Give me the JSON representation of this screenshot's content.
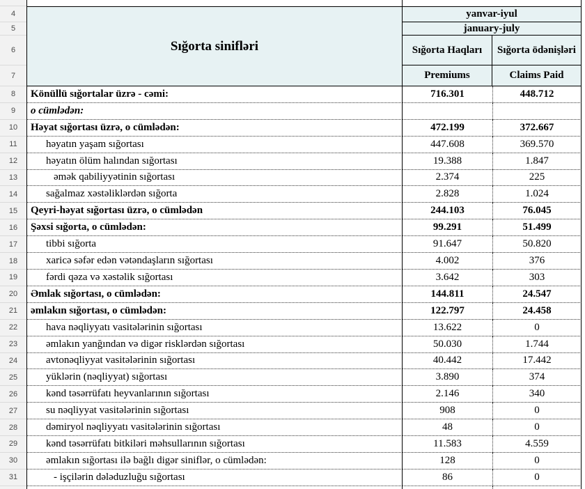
{
  "header": {
    "classes": "Sığorta sinifləri",
    "period_az": "yanvar-iyul",
    "period_en": "january-july",
    "premiums_az": "Sığorta Haqları",
    "claims_az": "Sığorta ödənişləri",
    "premiums_en": "Premiums",
    "claims_en": "Claims Paid"
  },
  "gutter": {
    "header_row_numbers": [
      "4",
      "5",
      "6",
      "7"
    ]
  },
  "rows": [
    {
      "num": "8",
      "label": "Könüllü sığortalar üzrə - cəmi:",
      "premiums": "716.301",
      "claims": "448.712",
      "style": "bold",
      "indent": 0
    },
    {
      "num": "9",
      "label": "o cümlədən:",
      "premiums": "",
      "claims": "",
      "style": "italic",
      "indent": 0
    },
    {
      "num": "10",
      "label": "Həyat sığortası üzrə, o cümlədən:",
      "premiums": "472.199",
      "claims": "372.667",
      "style": "bold",
      "indent": 0
    },
    {
      "num": "11",
      "label": "həyatın yaşam sığortası",
      "premiums": "447.608",
      "claims": "369.570",
      "style": "normal",
      "indent": 1
    },
    {
      "num": "12",
      "label": "həyatın ölüm halından sığortası",
      "premiums": "19.388",
      "claims": "1.847",
      "style": "normal",
      "indent": 1
    },
    {
      "num": "13",
      "label": "əmək qabiliyyətinin sığortası",
      "premiums": "2.374",
      "claims": "225",
      "style": "normal",
      "indent": 2
    },
    {
      "num": "14",
      "label": "sağalmaz xəstəliklərdən sığorta",
      "premiums": "2.828",
      "claims": "1.024",
      "style": "normal",
      "indent": 1
    },
    {
      "num": "15",
      "label": "Qeyri-həyat sığortası üzrə, o cümlədən",
      "premiums": "244.103",
      "claims": "76.045",
      "style": "bold",
      "indent": 0
    },
    {
      "num": "16",
      "label": "Şəxsi sığorta,  o cümlədən:",
      "premiums": "99.291",
      "claims": "51.499",
      "style": "bold",
      "indent": 0
    },
    {
      "num": "17",
      "label": "tibbi sığorta",
      "premiums": "91.647",
      "claims": "50.820",
      "style": "normal",
      "indent": 1
    },
    {
      "num": "18",
      "label": "xaricə səfər edən vətəndaşların sığortası",
      "premiums": "4.002",
      "claims": "376",
      "style": "normal",
      "indent": 1
    },
    {
      "num": "19",
      "label": "fərdi qəza və xəstəlik sığortası",
      "premiums": "3.642",
      "claims": "303",
      "style": "normal",
      "indent": 1
    },
    {
      "num": "20",
      "label": "Əmlak sığortası, o cümlədən:",
      "premiums": "144.811",
      "claims": "24.547",
      "style": "bold",
      "indent": 0
    },
    {
      "num": "21",
      "label": "əmlakın sığortası,  o cümlədən:",
      "premiums": "122.797",
      "claims": "24.458",
      "style": "bold",
      "indent": 0
    },
    {
      "num": "22",
      "label": "hava nəqliyyatı vasitələrinin sığortası",
      "premiums": "13.622",
      "claims": "0",
      "style": "normal",
      "indent": 1
    },
    {
      "num": "23",
      "label": "əmlakın yanğından və digər risklərdən sığortası",
      "premiums": "50.030",
      "claims": "1.744",
      "style": "normal",
      "indent": 1
    },
    {
      "num": "24",
      "label": "avtonəqliyyat vasitələrinin sığortası",
      "premiums": "40.442",
      "claims": "17.442",
      "style": "normal",
      "indent": 1
    },
    {
      "num": "25",
      "label": "yüklərin (nəqliyyat) sığortası",
      "premiums": "3.890",
      "claims": "374",
      "style": "normal",
      "indent": 1
    },
    {
      "num": "26",
      "label": "kənd təsərrüfatı heyvanlarının sığortası",
      "premiums": "2.146",
      "claims": "340",
      "style": "normal",
      "indent": 1
    },
    {
      "num": "27",
      "label": "su nəqliyyat vasitələrinin sığortası",
      "premiums": "908",
      "claims": "0",
      "style": "normal",
      "indent": 1
    },
    {
      "num": "28",
      "label": "dəmiryol nəqliyyatı vasitələrinin sığortası",
      "premiums": "48",
      "claims": "0",
      "style": "normal",
      "indent": 1
    },
    {
      "num": "29",
      "label": "kənd təsərrüfatı bitkiləri məhsullarının sığortası",
      "premiums": "11.583",
      "claims": "4.559",
      "style": "normal",
      "indent": 1
    },
    {
      "num": "30",
      "label": "əmlakın sığortası ilə bağlı digər siniflər,  o cümlədən:",
      "premiums": "128",
      "claims": "0",
      "style": "normal",
      "indent": 1
    },
    {
      "num": "31",
      "label": "- işçilərin dələduzluğu sığortası",
      "premiums": "86",
      "claims": "0",
      "style": "normal",
      "indent": 2
    }
  ],
  "colors": {
    "header_fill": "#e7f2f3",
    "gutter_fill": "#f2f2f2",
    "grid_solid": "#000000",
    "grid_dotted": "#333333",
    "gutter_text": "#4a4a4a"
  }
}
